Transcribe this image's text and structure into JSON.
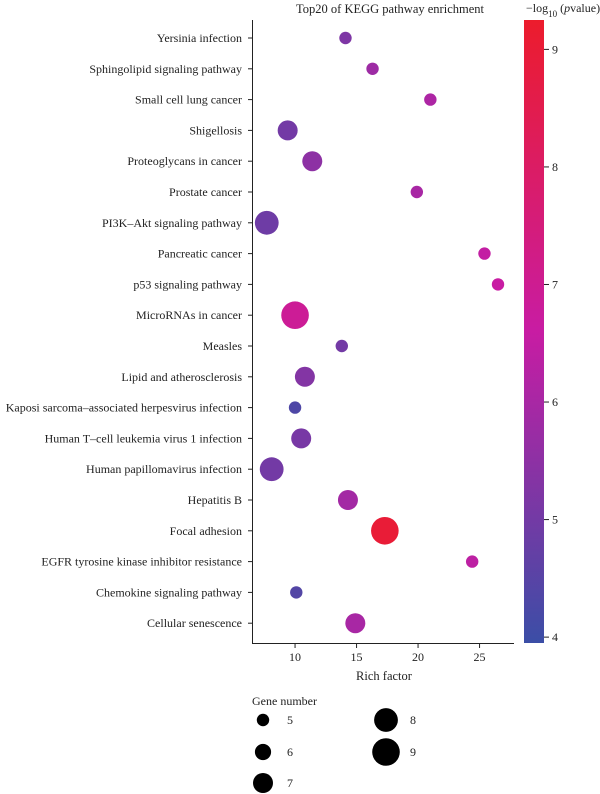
{
  "chart_data": {
    "type": "scatter",
    "title": "Top20 of KEGG pathway enrichment",
    "xlabel": "Rich factor",
    "ylabel": "",
    "xlim": [
      6.5,
      27.8
    ],
    "xticks": [
      10,
      15,
      20,
      25
    ],
    "grid": false,
    "categories": [
      "Yersinia infection",
      "Sphingolipid signaling pathway",
      "Small cell lung cancer",
      "Shigellosis",
      "Proteoglycans in cancer",
      "Prostate cancer",
      "PI3K–Akt signaling pathway",
      "Pancreatic cancer",
      "p53 signaling pathway",
      "MicroRNAs in cancer",
      "Measles",
      "Lipid and atherosclerosis",
      "Kaposi sarcoma–associated herpesvirus infection",
      "Human T–cell leukemia virus 1 infection",
      "Human papillomavirus infection",
      "Hepatitis B",
      "Focal adhesion",
      "EGFR tyrosine kinase inhibitor resistance",
      "Chemokine signaling pathway",
      "Cellular senescence"
    ],
    "points": [
      {
        "x": 14.1,
        "gene_number": 5,
        "neg_log10_p": 5.2
      },
      {
        "x": 16.3,
        "gene_number": 5,
        "neg_log10_p": 5.8
      },
      {
        "x": 21.0,
        "gene_number": 5,
        "neg_log10_p": 6.1
      },
      {
        "x": 9.4,
        "gene_number": 7,
        "neg_log10_p": 5.0
      },
      {
        "x": 11.4,
        "gene_number": 7,
        "neg_log10_p": 5.5
      },
      {
        "x": 19.9,
        "gene_number": 5,
        "neg_log10_p": 6.0
      },
      {
        "x": 7.7,
        "gene_number": 8,
        "neg_log10_p": 4.9
      },
      {
        "x": 25.4,
        "gene_number": 5,
        "neg_log10_p": 6.5
      },
      {
        "x": 26.5,
        "gene_number": 5,
        "neg_log10_p": 6.6
      },
      {
        "x": 10.0,
        "gene_number": 9,
        "neg_log10_p": 6.9
      },
      {
        "x": 13.8,
        "gene_number": 5,
        "neg_log10_p": 5.0
      },
      {
        "x": 10.8,
        "gene_number": 7,
        "neg_log10_p": 5.3
      },
      {
        "x": 10.0,
        "gene_number": 5,
        "neg_log10_p": 4.3
      },
      {
        "x": 10.5,
        "gene_number": 7,
        "neg_log10_p": 5.1
      },
      {
        "x": 8.1,
        "gene_number": 8,
        "neg_log10_p": 5.0
      },
      {
        "x": 14.3,
        "gene_number": 7,
        "neg_log10_p": 5.9
      },
      {
        "x": 17.3,
        "gene_number": 9,
        "neg_log10_p": 9.0
      },
      {
        "x": 24.4,
        "gene_number": 5,
        "neg_log10_p": 6.4
      },
      {
        "x": 10.1,
        "gene_number": 5,
        "neg_log10_p": 4.4
      },
      {
        "x": 14.9,
        "gene_number": 7,
        "neg_log10_p": 6.0
      }
    ],
    "size_legend": {
      "title": "Gene number",
      "values": [
        5,
        6,
        7,
        8,
        9
      ]
    },
    "color_legend": {
      "title_prefix": "−log",
      "title_sub": "10",
      "title_mid": " (",
      "title_italic": "p",
      "title_suffix": "value)",
      "range": [
        3.95,
        9.25
      ],
      "ticks": [
        4,
        5,
        6,
        7,
        8,
        9
      ],
      "color_low": "#3b4ea6",
      "color_mid": "#c81ca3",
      "color_high": "#ec1c2c"
    },
    "legend_placement": "right and bottom"
  }
}
